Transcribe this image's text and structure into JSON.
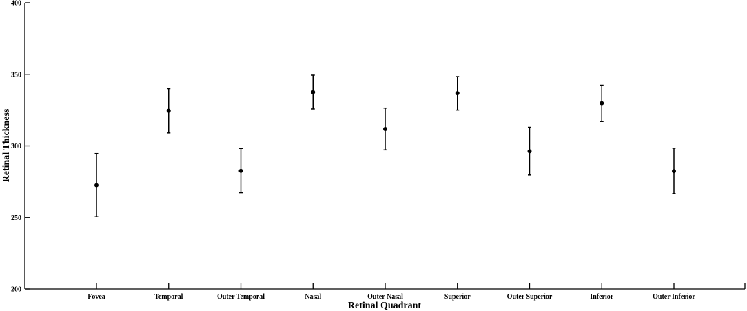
{
  "chart_data": {
    "type": "scatter",
    "title": "",
    "xlabel": "Retinal Quadrant",
    "ylabel": "Retinal Thickness",
    "ylim": [
      200,
      400
    ],
    "yticks": [
      200,
      250,
      300,
      350,
      400
    ],
    "grid": false,
    "categories": [
      "Fovea",
      "Temporal",
      "Outer Temporal",
      "Nasal",
      "Outer Nasal",
      "Superior",
      "Outer Superior",
      "Inferior",
      "Outer Inferior"
    ],
    "series": [
      {
        "values": [
          272.5,
          324.5,
          282.5,
          337.5,
          311.8,
          336.8,
          296.2,
          329.8,
          282.3
        ],
        "error_low": [
          250.5,
          309.0,
          267.2,
          325.8,
          297.2,
          325.0,
          279.6,
          317.0,
          266.6
        ],
        "error_high": [
          294.6,
          340.0,
          298.2,
          349.4,
          326.4,
          348.4,
          313.0,
          342.4,
          298.4
        ]
      }
    ]
  }
}
